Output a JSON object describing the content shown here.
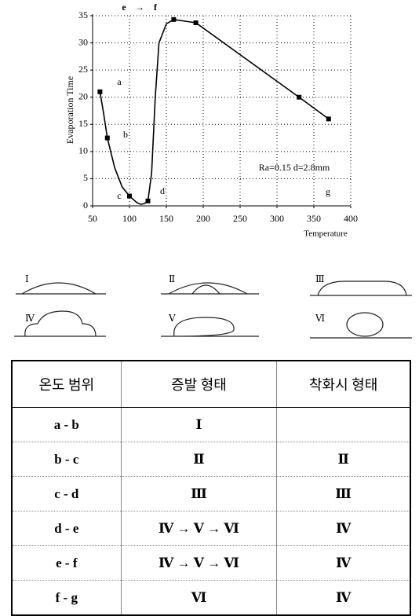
{
  "chart_data": {
    "type": "line",
    "y_label": "Evaporation Time",
    "x_label": "Temperature",
    "annotation": "Ra=0.15  d=2.8mm",
    "arrow": "→",
    "xlim": [
      50,
      400
    ],
    "xticks": [
      50,
      100,
      150,
      200,
      250,
      300,
      350,
      400
    ],
    "ylim": [
      0,
      35
    ],
    "yticks": [
      0,
      5,
      10,
      15,
      20,
      25,
      30,
      35
    ],
    "grid": true,
    "series": [
      {
        "color": "#000000",
        "x": [
          60,
          65,
          70,
          80,
          90,
          100,
          110,
          115,
          120,
          125,
          130,
          135,
          140,
          150,
          160,
          190,
          330,
          370
        ],
        "values": [
          21,
          17,
          12.5,
          7,
          3.5,
          1.8,
          0.6,
          0.3,
          0.4,
          0.9,
          6,
          20,
          30,
          33.5,
          34.3,
          33.7,
          20,
          16
        ]
      },
      {
        "color": "#000000",
        "markers": true,
        "x": [
          60,
          70,
          100,
          125,
          160,
          190,
          330,
          370
        ],
        "values": [
          21,
          12.5,
          1.8,
          0.9,
          34.3,
          33.7,
          20,
          16
        ]
      }
    ],
    "point_labels": [
      "a",
      "b",
      "c",
      "d",
      "e",
      "f",
      "g"
    ]
  },
  "diagrams": {
    "labels": [
      "Ⅰ",
      "Ⅱ",
      "Ⅲ",
      "Ⅳ",
      "Ⅴ",
      "Ⅵ"
    ]
  },
  "table": {
    "header": [
      "온도 범위",
      "증발 형태",
      "착화시 형태"
    ],
    "rows": [
      [
        "a - b",
        "Ⅰ",
        null
      ],
      [
        "b - c",
        "Ⅱ",
        "Ⅱ"
      ],
      [
        "c - d",
        "Ⅲ",
        "Ⅲ"
      ],
      [
        "d - e",
        "Ⅳ → Ⅴ → Ⅵ",
        "Ⅳ"
      ],
      [
        "e - f",
        "Ⅳ → Ⅴ → Ⅵ",
        "Ⅳ"
      ],
      [
        "f - g",
        "Ⅵ",
        "Ⅳ"
      ]
    ]
  }
}
